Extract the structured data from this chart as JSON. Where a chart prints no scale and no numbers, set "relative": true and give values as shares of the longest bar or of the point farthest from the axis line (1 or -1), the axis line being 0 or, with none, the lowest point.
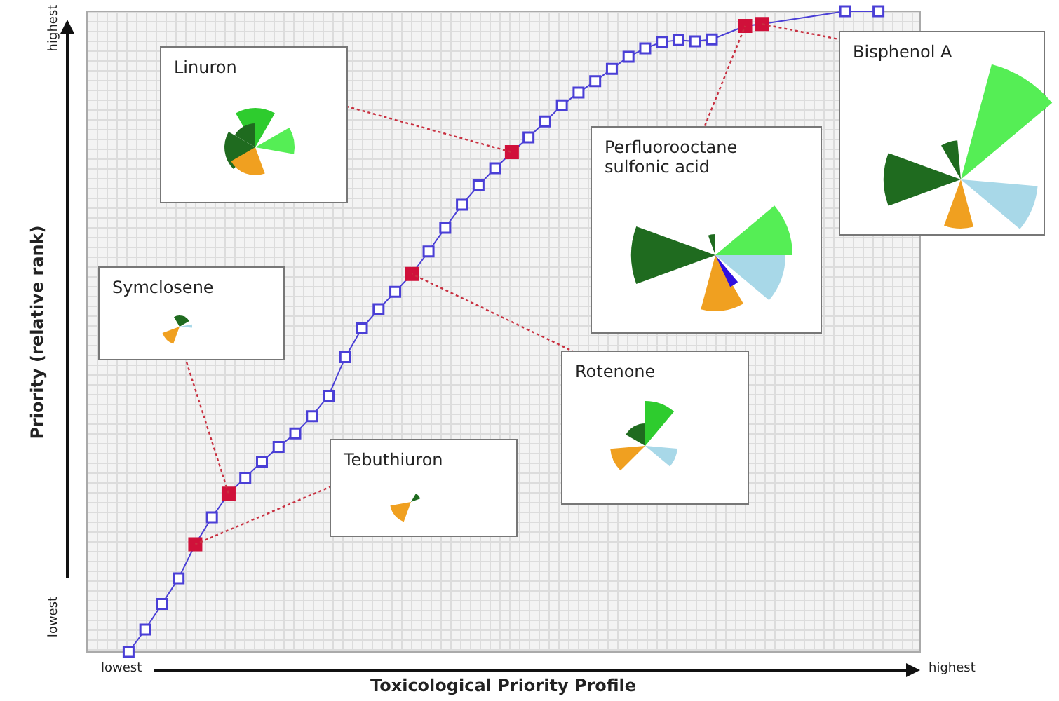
{
  "chart_data": {
    "type": "line",
    "xlabel": "Toxicological Priority Profile",
    "ylabel": "Priority (relative rank)",
    "relative": true,
    "marker": "square",
    "line_style": "solid",
    "categories": [
      null,
      null,
      null,
      null,
      null,
      null,
      null,
      null,
      null,
      null,
      null,
      null,
      null,
      null,
      null,
      null,
      null,
      null,
      null,
      null,
      null,
      null,
      null,
      null,
      null,
      null,
      null,
      null,
      null,
      null,
      null,
      null,
      null,
      null,
      null,
      null,
      null,
      null,
      null,
      null,
      null,
      null,
      null,
      null,
      null,
      null,
      null,
      null,
      null,
      null
    ],
    "series": [
      {
        "color": "#4a3fd6",
        "values": [
          null,
          null,
          0.0,
          0.035,
          0.075,
          0.115,
          0.168,
          0.21,
          0.247,
          0.272,
          0.297,
          0.32,
          0.341,
          0.368,
          0.4,
          0.46,
          0.505,
          0.535,
          0.562,
          0.59,
          0.625,
          0.662,
          0.698,
          0.728,
          0.755,
          0.78,
          0.803,
          0.828,
          0.853,
          0.873,
          0.891,
          0.91,
          0.929,
          0.942,
          0.952,
          0.955,
          0.953,
          0.956,
          null,
          0.977,
          0.98,
          null,
          null,
          null,
          null,
          1.0,
          null,
          1.0,
          null,
          null
        ],
        "colors": [
          "#4a3fd6",
          "#4a3fd6",
          "#4a3fd6",
          "#4a3fd6",
          "#4a3fd6",
          "#4a3fd6",
          "#d0103a",
          "#4a3fd6",
          "#d0103a",
          "#4a3fd6",
          "#4a3fd6",
          "#4a3fd6",
          "#4a3fd6",
          "#4a3fd6",
          "#4a3fd6",
          "#4a3fd6",
          "#4a3fd6",
          "#4a3fd6",
          "#4a3fd6",
          "#d0103a",
          "#4a3fd6",
          "#4a3fd6",
          "#4a3fd6",
          "#4a3fd6",
          "#4a3fd6",
          "#d0103a",
          "#4a3fd6",
          "#4a3fd6",
          "#4a3fd6",
          "#4a3fd6",
          "#4a3fd6",
          "#4a3fd6",
          "#4a3fd6",
          "#4a3fd6",
          "#4a3fd6",
          "#4a3fd6",
          "#4a3fd6",
          "#4a3fd6",
          "#4a3fd6",
          "#d0103a",
          "#d0103a",
          "#4a3fd6",
          "#4a3fd6",
          "#4a3fd6",
          "#4a3fd6",
          "#4a3fd6",
          "#4a3fd6",
          "#4a3fd6",
          "#4a3fd6",
          "#4a3fd6"
        ]
      }
    ],
    "annotations": [
      "Linuron",
      "Symclosene",
      "Tebuthiuron",
      "Rotenone",
      "Perfluorooctane sulfonic acid",
      "Bisphenol A",
      "lowest",
      "highest",
      "lowest",
      "highest"
    ]
  }
}
